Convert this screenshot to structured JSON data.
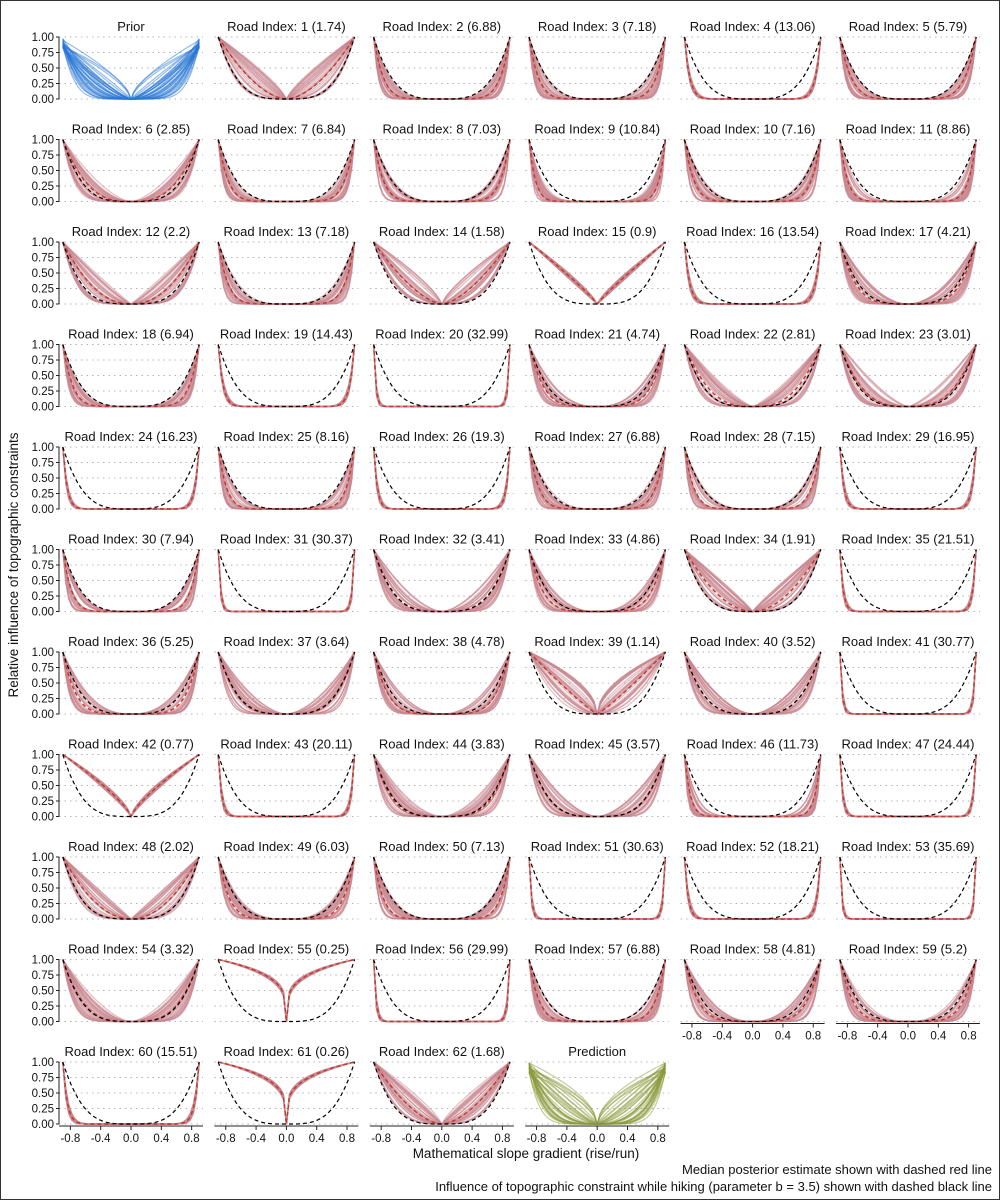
{
  "chart_data": {
    "type": "line",
    "layout": "faceted small multiples",
    "facet_title_prefix": "Road Index:",
    "xlabel": "Mathematical slope gradient (rise/run)",
    "ylabel": "Relative influence of topographic constraints",
    "xlim": [
      -0.95,
      0.95
    ],
    "ylim": [
      0,
      1
    ],
    "x_ticks": [
      "-0.8",
      "-0.4",
      "0.0",
      "0.4",
      "0.8"
    ],
    "y_ticks": [
      "0.00",
      "0.25",
      "0.50",
      "0.75",
      "1.00"
    ],
    "grid": "horizontal dotted",
    "reference_parameter_b": 3.5,
    "captions": [
      "Median posterior estimate shown with dashed red line",
      "Influence of topographic constraint while hiking (parameter b = 3.5) shown with dashed black line"
    ],
    "colors": {
      "prior": "#2a78d6",
      "posterior": "#c9878f",
      "prediction": "#8a9a3a",
      "median": "#c0392b",
      "reference": "#000000"
    },
    "prior": {
      "title": "Prior"
    },
    "prediction": {
      "title": "Prediction"
    },
    "roads": [
      {
        "index": 1,
        "value": 1.74
      },
      {
        "index": 2,
        "value": 6.88
      },
      {
        "index": 3,
        "value": 7.18
      },
      {
        "index": 4,
        "value": 13.06
      },
      {
        "index": 5,
        "value": 5.79
      },
      {
        "index": 6,
        "value": 2.85
      },
      {
        "index": 7,
        "value": 6.84
      },
      {
        "index": 8,
        "value": 7.03
      },
      {
        "index": 9,
        "value": 10.84
      },
      {
        "index": 10,
        "value": 7.16
      },
      {
        "index": 11,
        "value": 8.86
      },
      {
        "index": 12,
        "value": 2.2
      },
      {
        "index": 13,
        "value": 7.18
      },
      {
        "index": 14,
        "value": 1.58
      },
      {
        "index": 15,
        "value": 0.9
      },
      {
        "index": 16,
        "value": 13.54
      },
      {
        "index": 17,
        "value": 4.21
      },
      {
        "index": 18,
        "value": 6.94
      },
      {
        "index": 19,
        "value": 14.43
      },
      {
        "index": 20,
        "value": 32.99
      },
      {
        "index": 21,
        "value": 4.74
      },
      {
        "index": 22,
        "value": 2.81
      },
      {
        "index": 23,
        "value": 3.01
      },
      {
        "index": 24,
        "value": 16.23
      },
      {
        "index": 25,
        "value": 8.16
      },
      {
        "index": 26,
        "value": 19.3
      },
      {
        "index": 27,
        "value": 6.88
      },
      {
        "index": 28,
        "value": 7.15
      },
      {
        "index": 29,
        "value": 16.95
      },
      {
        "index": 30,
        "value": 7.94
      },
      {
        "index": 31,
        "value": 30.37
      },
      {
        "index": 32,
        "value": 3.41
      },
      {
        "index": 33,
        "value": 4.86
      },
      {
        "index": 34,
        "value": 1.91
      },
      {
        "index": 35,
        "value": 21.51
      },
      {
        "index": 36,
        "value": 5.25
      },
      {
        "index": 37,
        "value": 3.64
      },
      {
        "index": 38,
        "value": 4.78
      },
      {
        "index": 39,
        "value": 1.14
      },
      {
        "index": 40,
        "value": 3.52
      },
      {
        "index": 41,
        "value": 30.77
      },
      {
        "index": 42,
        "value": 0.77
      },
      {
        "index": 43,
        "value": 20.11
      },
      {
        "index": 44,
        "value": 3.83
      },
      {
        "index": 45,
        "value": 3.57
      },
      {
        "index": 46,
        "value": 11.73
      },
      {
        "index": 47,
        "value": 24.44
      },
      {
        "index": 48,
        "value": 2.02
      },
      {
        "index": 49,
        "value": 6.03
      },
      {
        "index": 50,
        "value": 7.13
      },
      {
        "index": 51,
        "value": 30.63
      },
      {
        "index": 52,
        "value": 18.21
      },
      {
        "index": 53,
        "value": 35.69
      },
      {
        "index": 54,
        "value": 3.32
      },
      {
        "index": 55,
        "value": 0.25
      },
      {
        "index": 56,
        "value": 29.99
      },
      {
        "index": 57,
        "value": 6.88
      },
      {
        "index": 58,
        "value": 4.81
      },
      {
        "index": 59,
        "value": 5.2
      },
      {
        "index": 60,
        "value": 15.51
      },
      {
        "index": 61,
        "value": 0.26
      },
      {
        "index": 62,
        "value": 1.68
      }
    ]
  }
}
